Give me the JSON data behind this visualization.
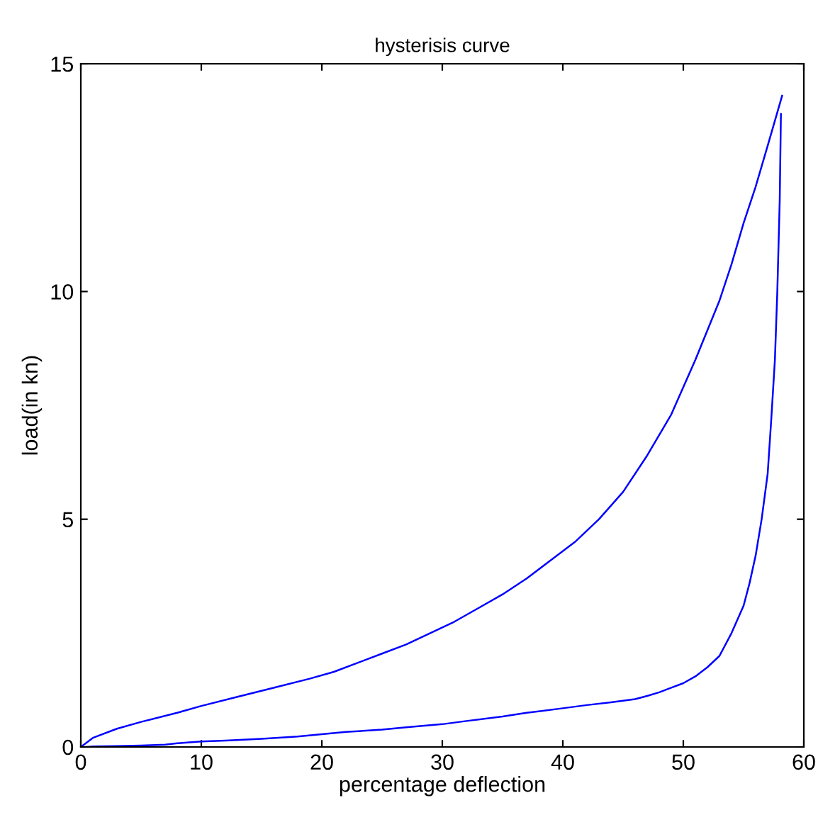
{
  "chart_data": {
    "type": "line",
    "title": "hysterisis curve",
    "xlabel": "percentage deflection",
    "ylabel": "load(in kn)",
    "series": [
      {
        "color": "#0000ff",
        "x": [
          0,
          1,
          3,
          5,
          8,
          10,
          13,
          16,
          19,
          21,
          23,
          25,
          27,
          29,
          31,
          33,
          35,
          37,
          39,
          41,
          43,
          45,
          47,
          49,
          51,
          53,
          54,
          55,
          56,
          57,
          58.2
        ],
        "values": [
          0,
          0.2,
          0.4,
          0.55,
          0.75,
          0.9,
          1.1,
          1.3,
          1.5,
          1.65,
          1.85,
          2.05,
          2.25,
          2.5,
          2.75,
          3.05,
          3.35,
          3.7,
          4.1,
          4.5,
          5.0,
          5.6,
          6.4,
          7.3,
          8.5,
          9.8,
          10.6,
          11.5,
          12.3,
          13.2,
          14.3
        ]
      },
      {
        "color": "#0000ff",
        "x": [
          0.5,
          1,
          3,
          5,
          7,
          8,
          10,
          12,
          15,
          18,
          20,
          22,
          25,
          27,
          30,
          32,
          35,
          37,
          40,
          42,
          44,
          46,
          47,
          48,
          49,
          50,
          51,
          52,
          53,
          54,
          54.5,
          55,
          55.5,
          56,
          56.5,
          57,
          57.3,
          57.6,
          57.8,
          58,
          58.1
        ],
        "values": [
          0,
          0.01,
          0.02,
          0.03,
          0.05,
          0.08,
          0.12,
          0.14,
          0.18,
          0.23,
          0.28,
          0.33,
          0.38,
          0.43,
          0.5,
          0.57,
          0.67,
          0.75,
          0.85,
          0.92,
          0.98,
          1.05,
          1.12,
          1.2,
          1.3,
          1.4,
          1.55,
          1.75,
          2.0,
          2.5,
          2.8,
          3.1,
          3.6,
          4.2,
          5.0,
          6.0,
          7.2,
          8.5,
          10.0,
          12.0,
          13.9
        ]
      }
    ],
    "xlim": [
      0,
      60
    ],
    "xticks": [
      0,
      10,
      20,
      30,
      40,
      50,
      60
    ],
    "ylim": [
      0,
      15
    ],
    "yticks": [
      0,
      5,
      10,
      15
    ],
    "grid": false,
    "legend": false,
    "marker": "none",
    "line_style": "solid"
  }
}
